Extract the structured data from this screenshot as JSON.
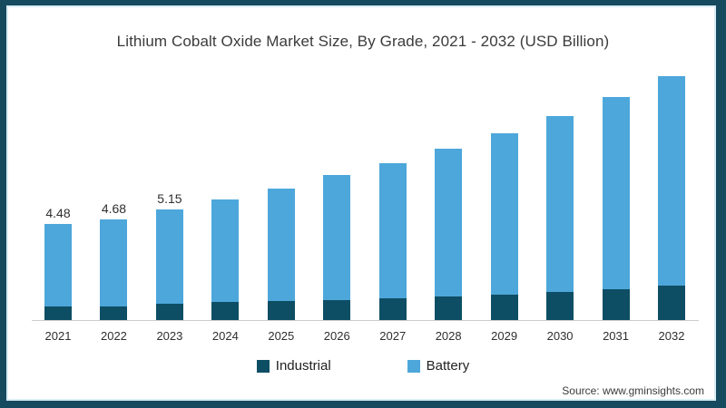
{
  "chart": {
    "title": "Lithium Cobalt Oxide Market Size, By Grade, 2021 - 2032 (USD Billion)",
    "source": "Source: www.gminsights.com"
  },
  "colors": {
    "industrial": "#0E4E64",
    "battery": "#4DA7DB",
    "frame": "#164A5E",
    "axis": "#CCCCCC"
  },
  "chart_data": {
    "type": "bar",
    "stacked": true,
    "title": "Lithium Cobalt Oxide Market Size, By Grade, 2021 - 2032 (USD Billion)",
    "units": "USD Billion",
    "categories": [
      "2021",
      "2022",
      "2023",
      "2024",
      "2025",
      "2026",
      "2027",
      "2028",
      "2029",
      "2030",
      "2031",
      "2032"
    ],
    "series": [
      {
        "name": "Industrial",
        "color": "#0E4E64",
        "values": [
          0.63,
          0.65,
          0.76,
          0.84,
          0.89,
          0.93,
          1.03,
          1.1,
          1.2,
          1.31,
          1.43,
          1.62
        ]
      },
      {
        "name": "Battery",
        "color": "#4DA7DB",
        "values": [
          3.85,
          4.03,
          4.39,
          4.76,
          5.23,
          5.81,
          6.3,
          6.86,
          7.52,
          8.19,
          8.95,
          9.76
        ]
      }
    ],
    "totals": [
      4.48,
      4.68,
      5.15,
      5.6,
      6.12,
      6.74,
      7.33,
      7.96,
      8.72,
      9.5,
      10.38,
      11.38
    ],
    "value_labels": [
      "4.48",
      "4.68",
      "5.15",
      null,
      null,
      null,
      null,
      null,
      null,
      null,
      null,
      null
    ],
    "ylim": [
      0,
      12
    ],
    "gridlines": false,
    "y_axis_visible": false,
    "x_axis_visible": true,
    "legend_position": "bottom"
  }
}
